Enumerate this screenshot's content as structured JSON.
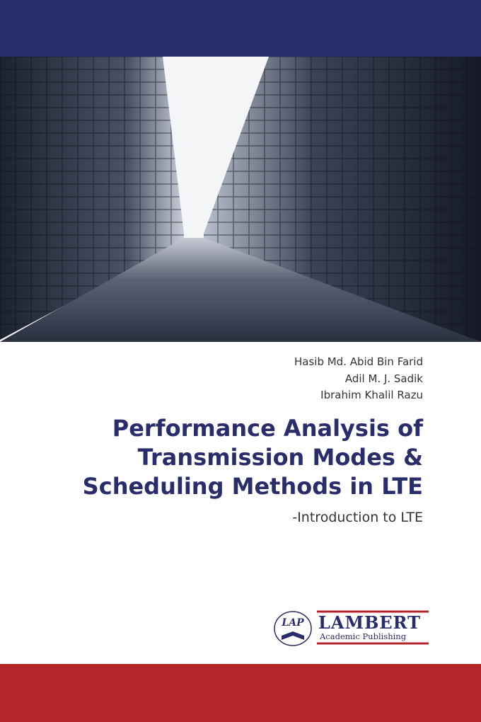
{
  "authors": [
    "Hasib Md. Abid Bin Farid",
    "Adil M. J. Sadik",
    "Ibrahim Khalil Razu"
  ],
  "title": [
    "Performance Analysis of",
    "Transmission Modes &",
    "Scheduling Methods in LTE"
  ],
  "subtitle": "-Introduction to LTE",
  "publisher": {
    "mark": "LAP",
    "name": "LAMBERT",
    "tagline": "Academic Publishing"
  }
}
